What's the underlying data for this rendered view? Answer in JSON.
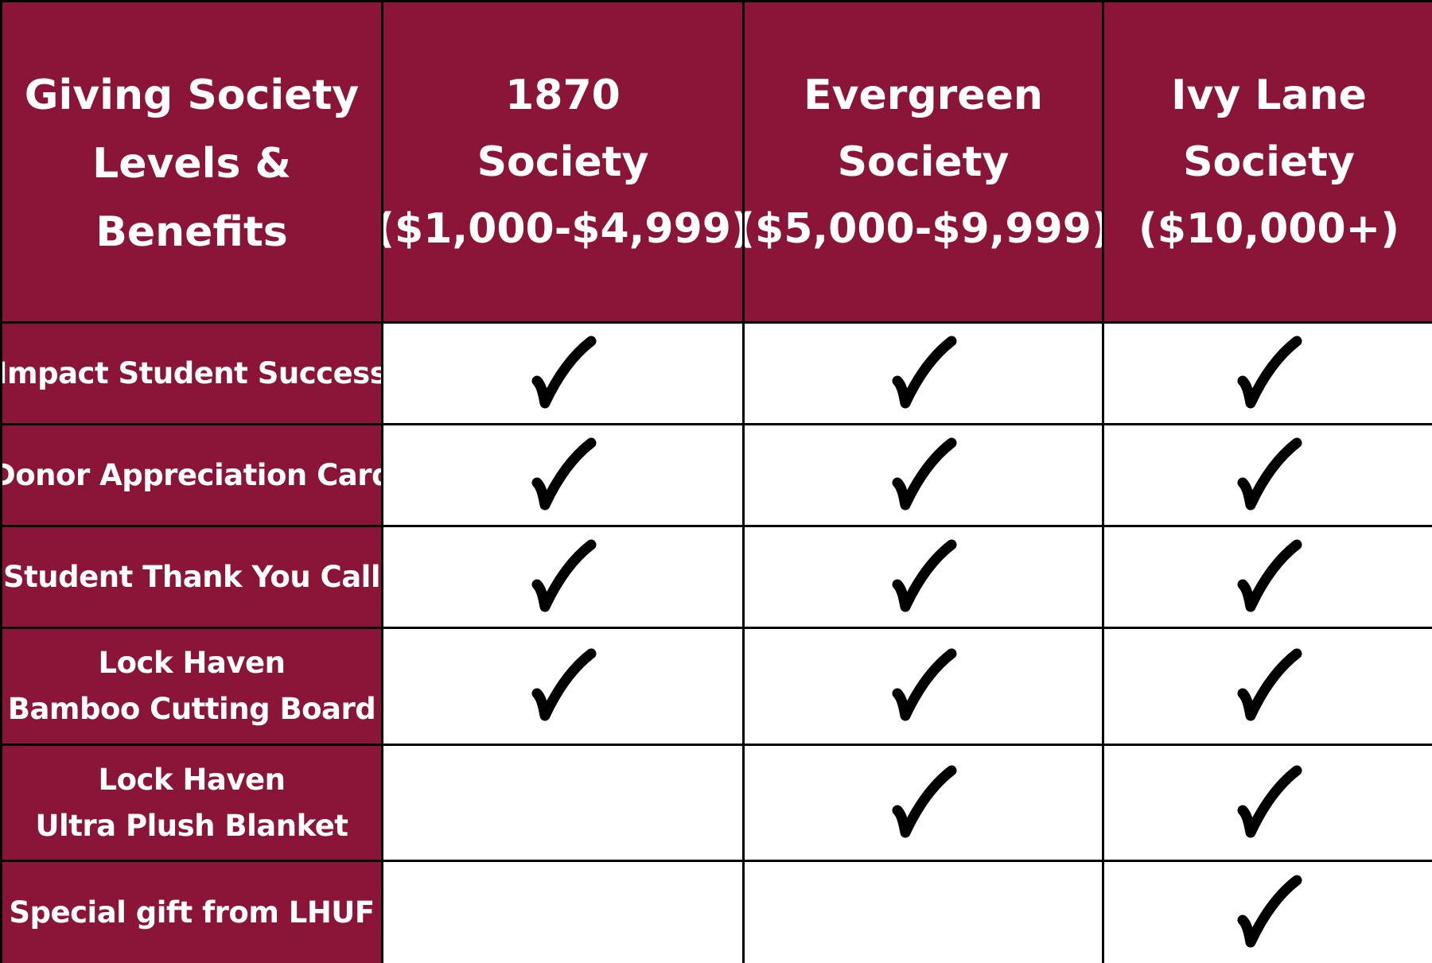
{
  "colors": {
    "maroon": "#8b1538",
    "grid_line": "#000000",
    "cell": "#ffffff",
    "header_text": "#ffffff",
    "check": "#000000"
  },
  "table": {
    "corner": {
      "line1": "Giving Society",
      "line2": "Levels & Benefits"
    },
    "columns": [
      {
        "line1": "1870",
        "line2": "Society",
        "line3": "($1,000-$4,999)"
      },
      {
        "line1": "Evergreen",
        "line2": "Society",
        "line3": "($5,000-$9,999)"
      },
      {
        "line1": "Ivy Lane",
        "line2": "Society",
        "line3": "($10,000+)"
      }
    ],
    "rows": [
      {
        "line1": "Impact Student Success",
        "line2": "",
        "included": [
          true,
          true,
          true
        ]
      },
      {
        "line1": "Donor Appreciation Card",
        "line2": "",
        "included": [
          true,
          true,
          true
        ]
      },
      {
        "line1": "Student Thank You Call",
        "line2": "",
        "included": [
          true,
          true,
          true
        ]
      },
      {
        "line1": "Lock Haven",
        "line2": "Bamboo Cutting Board",
        "included": [
          true,
          true,
          true
        ]
      },
      {
        "line1": "Lock Haven",
        "line2": "Ultra Plush Blanket",
        "included": [
          false,
          true,
          true
        ]
      },
      {
        "line1": "Special gift from LHUF",
        "line2": "",
        "included": [
          false,
          false,
          true
        ]
      }
    ],
    "check_icon": "checkmark-icon"
  }
}
